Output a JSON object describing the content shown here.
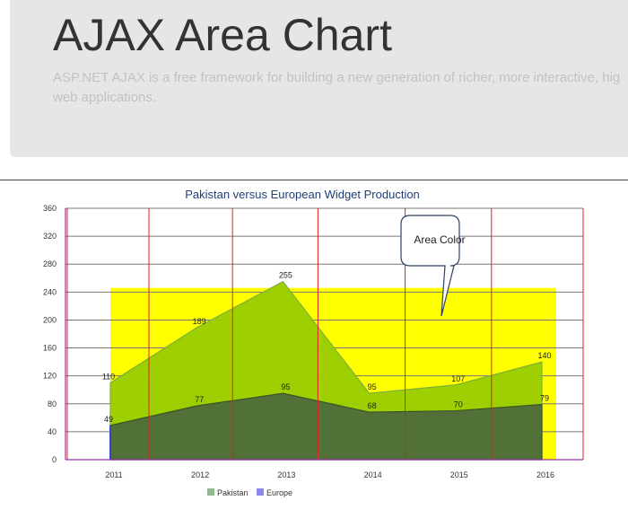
{
  "header": {
    "title": "AJAX Area Chart",
    "lead_line_1": "ASP.NET AJAX is a free framework for building a new generation of richer, more interactive, hig",
    "lead_line_2": "web applications."
  },
  "chart_data": {
    "type": "area",
    "title": "Pakistan versus European Widget Production",
    "categories": [
      "2011",
      "2012",
      "2013",
      "2014",
      "2015",
      "2016"
    ],
    "ylim": [
      0,
      360
    ],
    "yticks": [
      0,
      40,
      80,
      120,
      160,
      200,
      240,
      280,
      320,
      360
    ],
    "grid": true,
    "legend_position": "bottom-left",
    "series": [
      {
        "name": "Pakistan",
        "values": [
          110,
          189,
          255,
          95,
          107,
          140
        ],
        "color": "#99cc00",
        "stroke": "#7fb03a"
      },
      {
        "name": "Europe",
        "values": [
          49,
          77,
          95,
          68,
          70,
          79
        ],
        "color": "#4d6b3b",
        "stroke": "#3a5229"
      }
    ],
    "legend_colors": {
      "Pakistan": "#8fbc8f",
      "Europe": "#8888ee"
    },
    "highlight_band": {
      "x_from": "2011",
      "x_to": "2016",
      "y_from": 0,
      "y_to": 246,
      "color": "#ffff00"
    },
    "vertical_gridline_color": "#e02020",
    "callout": {
      "text": "Area Color"
    }
  }
}
